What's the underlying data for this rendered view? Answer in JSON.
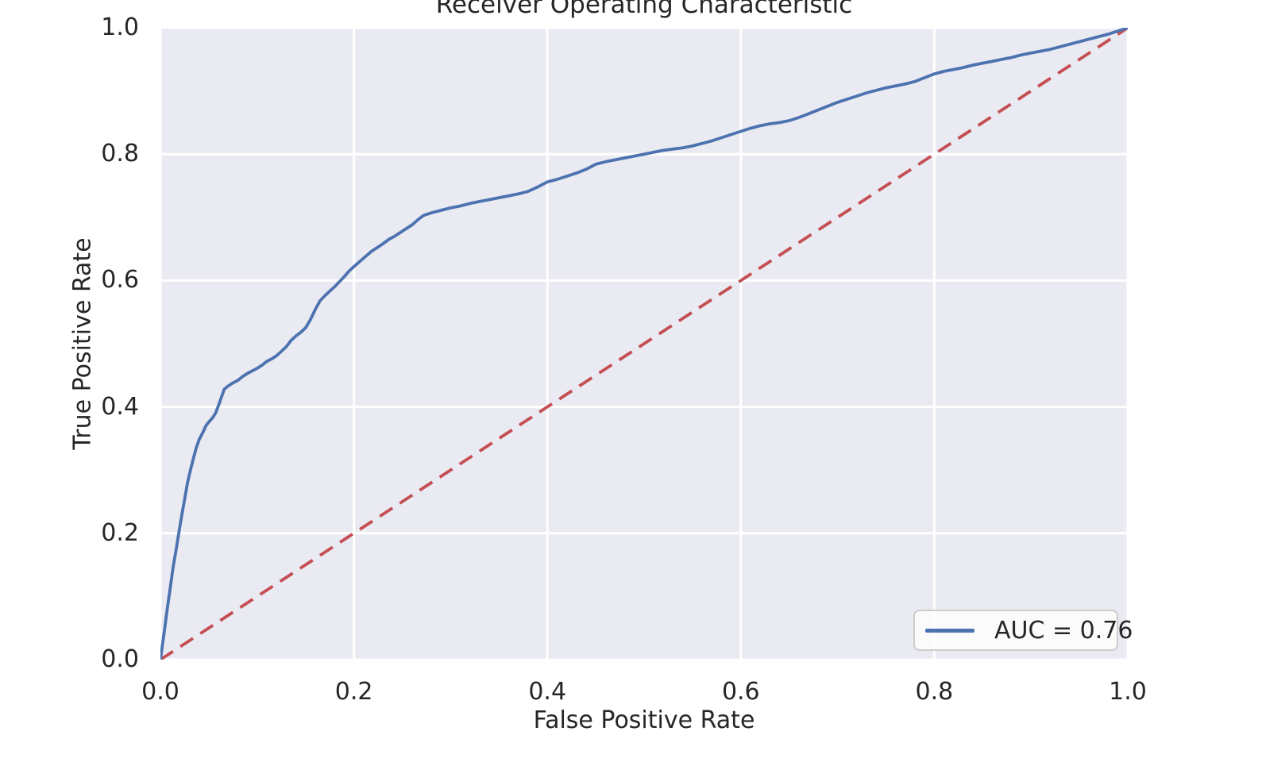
{
  "chart_data": {
    "type": "line",
    "title": "Receiver Operating Characteristic",
    "xlabel": "False Positive Rate",
    "ylabel": "True Positive Rate",
    "xlim": [
      0.0,
      1.0
    ],
    "ylim": [
      0.0,
      1.0
    ],
    "xtick_labels": [
      "0.0",
      "0.2",
      "0.4",
      "0.6",
      "0.8",
      "1.0"
    ],
    "ytick_labels": [
      "0.0",
      "0.2",
      "0.4",
      "0.6",
      "0.8",
      "1.0"
    ],
    "grid": true,
    "legend": {
      "label": "AUC = 0.76",
      "position": "lower right"
    },
    "auc": 0.76,
    "colors": {
      "roc_curve": "#4C72B0",
      "chance_line": "#C44E52",
      "plot_background": "#EAEAF2",
      "grid": "#FFFFFF",
      "text": "#262626",
      "legend_border": "#CCCCCC"
    },
    "series": [
      {
        "name": "ROC curve",
        "style": "solid",
        "color": "#4C72B0",
        "points": [
          [
            0.0,
            0.0
          ],
          [
            0.002,
            0.022
          ],
          [
            0.004,
            0.045
          ],
          [
            0.006,
            0.068
          ],
          [
            0.008,
            0.09
          ],
          [
            0.01,
            0.112
          ],
          [
            0.013,
            0.145
          ],
          [
            0.016,
            0.172
          ],
          [
            0.019,
            0.2
          ],
          [
            0.022,
            0.228
          ],
          [
            0.025,
            0.254
          ],
          [
            0.028,
            0.28
          ],
          [
            0.031,
            0.3
          ],
          [
            0.034,
            0.318
          ],
          [
            0.037,
            0.335
          ],
          [
            0.04,
            0.348
          ],
          [
            0.044,
            0.36
          ],
          [
            0.047,
            0.37
          ],
          [
            0.05,
            0.376
          ],
          [
            0.054,
            0.383
          ],
          [
            0.057,
            0.39
          ],
          [
            0.06,
            0.402
          ],
          [
            0.063,
            0.415
          ],
          [
            0.066,
            0.428
          ],
          [
            0.07,
            0.433
          ],
          [
            0.075,
            0.438
          ],
          [
            0.08,
            0.442
          ],
          [
            0.085,
            0.448
          ],
          [
            0.09,
            0.453
          ],
          [
            0.095,
            0.457
          ],
          [
            0.1,
            0.461
          ],
          [
            0.105,
            0.466
          ],
          [
            0.11,
            0.472
          ],
          [
            0.115,
            0.476
          ],
          [
            0.12,
            0.481
          ],
          [
            0.125,
            0.488
          ],
          [
            0.13,
            0.495
          ],
          [
            0.135,
            0.505
          ],
          [
            0.14,
            0.512
          ],
          [
            0.145,
            0.518
          ],
          [
            0.15,
            0.525
          ],
          [
            0.155,
            0.538
          ],
          [
            0.16,
            0.554
          ],
          [
            0.165,
            0.568
          ],
          [
            0.17,
            0.576
          ],
          [
            0.175,
            0.583
          ],
          [
            0.18,
            0.59
          ],
          [
            0.185,
            0.598
          ],
          [
            0.19,
            0.606
          ],
          [
            0.195,
            0.615
          ],
          [
            0.2,
            0.622
          ],
          [
            0.206,
            0.63
          ],
          [
            0.212,
            0.638
          ],
          [
            0.218,
            0.646
          ],
          [
            0.224,
            0.652
          ],
          [
            0.23,
            0.658
          ],
          [
            0.236,
            0.665
          ],
          [
            0.242,
            0.67
          ],
          [
            0.248,
            0.676
          ],
          [
            0.254,
            0.682
          ],
          [
            0.26,
            0.688
          ],
          [
            0.266,
            0.696
          ],
          [
            0.272,
            0.703
          ],
          [
            0.28,
            0.707
          ],
          [
            0.29,
            0.711
          ],
          [
            0.3,
            0.715
          ],
          [
            0.31,
            0.718
          ],
          [
            0.32,
            0.722
          ],
          [
            0.33,
            0.725
          ],
          [
            0.34,
            0.728
          ],
          [
            0.35,
            0.731
          ],
          [
            0.36,
            0.734
          ],
          [
            0.37,
            0.737
          ],
          [
            0.38,
            0.741
          ],
          [
            0.39,
            0.748
          ],
          [
            0.4,
            0.756
          ],
          [
            0.41,
            0.76
          ],
          [
            0.42,
            0.765
          ],
          [
            0.43,
            0.77
          ],
          [
            0.44,
            0.776
          ],
          [
            0.45,
            0.784
          ],
          [
            0.46,
            0.788
          ],
          [
            0.47,
            0.791
          ],
          [
            0.48,
            0.794
          ],
          [
            0.49,
            0.797
          ],
          [
            0.5,
            0.8
          ],
          [
            0.51,
            0.803
          ],
          [
            0.52,
            0.806
          ],
          [
            0.53,
            0.808
          ],
          [
            0.54,
            0.81
          ],
          [
            0.55,
            0.813
          ],
          [
            0.56,
            0.817
          ],
          [
            0.57,
            0.821
          ],
          [
            0.58,
            0.826
          ],
          [
            0.59,
            0.831
          ],
          [
            0.6,
            0.836
          ],
          [
            0.61,
            0.841
          ],
          [
            0.62,
            0.845
          ],
          [
            0.63,
            0.848
          ],
          [
            0.64,
            0.85
          ],
          [
            0.65,
            0.853
          ],
          [
            0.66,
            0.858
          ],
          [
            0.67,
            0.864
          ],
          [
            0.68,
            0.87
          ],
          [
            0.69,
            0.876
          ],
          [
            0.7,
            0.882
          ],
          [
            0.71,
            0.887
          ],
          [
            0.72,
            0.892
          ],
          [
            0.73,
            0.897
          ],
          [
            0.74,
            0.901
          ],
          [
            0.75,
            0.905
          ],
          [
            0.76,
            0.908
          ],
          [
            0.77,
            0.911
          ],
          [
            0.78,
            0.915
          ],
          [
            0.79,
            0.921
          ],
          [
            0.8,
            0.927
          ],
          [
            0.81,
            0.931
          ],
          [
            0.82,
            0.934
          ],
          [
            0.83,
            0.937
          ],
          [
            0.84,
            0.941
          ],
          [
            0.85,
            0.944
          ],
          [
            0.86,
            0.947
          ],
          [
            0.87,
            0.95
          ],
          [
            0.88,
            0.953
          ],
          [
            0.89,
            0.957
          ],
          [
            0.9,
            0.96
          ],
          [
            0.91,
            0.963
          ],
          [
            0.92,
            0.966
          ],
          [
            0.93,
            0.97
          ],
          [
            0.94,
            0.974
          ],
          [
            0.95,
            0.978
          ],
          [
            0.96,
            0.982
          ],
          [
            0.97,
            0.986
          ],
          [
            0.98,
            0.99
          ],
          [
            0.99,
            0.995
          ],
          [
            1.0,
            1.0
          ]
        ]
      },
      {
        "name": "chance diagonal",
        "style": "dashed",
        "color": "#C44E52",
        "points": [
          [
            0.0,
            0.0
          ],
          [
            1.0,
            1.0
          ]
        ]
      }
    ]
  }
}
